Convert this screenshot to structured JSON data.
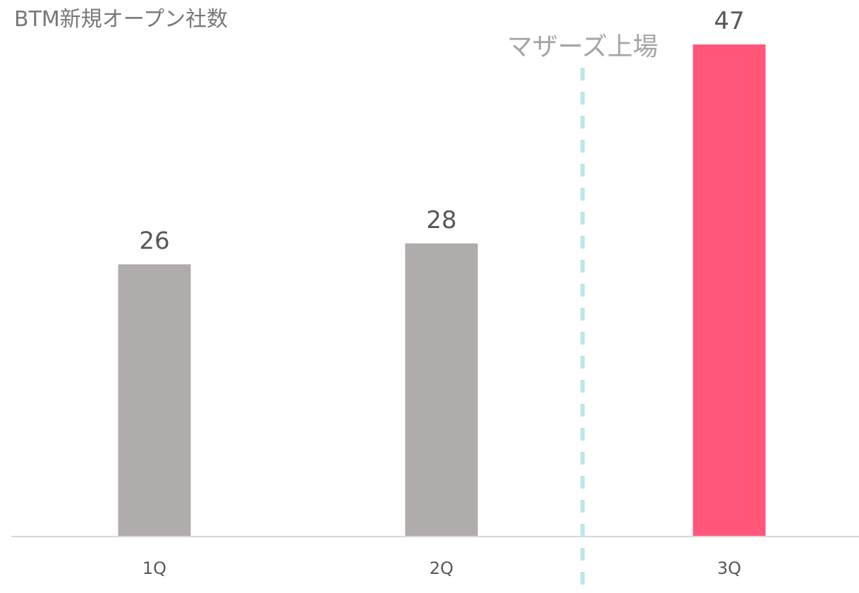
{
  "chart_data": {
    "type": "bar",
    "title": "BTM新規オープン社数",
    "categories": [
      "1Q",
      "2Q",
      "3Q"
    ],
    "values": [
      26,
      28,
      47
    ],
    "ylim": [
      0,
      47
    ],
    "grid": false,
    "legend": "none",
    "bar_colors": [
      "#b0acab",
      "#b0acab",
      "#ff5679"
    ],
    "annotation": {
      "label": "マザーズ上場",
      "position": "between 2Q and 3Q",
      "line_style": "dashed",
      "color": "#bfe6ea"
    },
    "axis_color": "#d9d6d6"
  }
}
